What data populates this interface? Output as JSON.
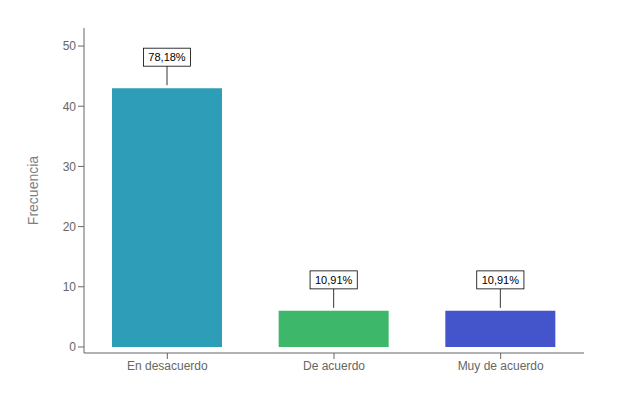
{
  "chart_data": {
    "type": "bar",
    "categories": [
      "En desacuerdo",
      "De acuerdo",
      "Muy de acuerdo"
    ],
    "values": [
      43,
      6,
      6
    ],
    "annotations": [
      "78,18%",
      "10,91%",
      "10,91%"
    ],
    "colors": [
      "#2E9DB8",
      "#3DB86A",
      "#4455CC"
    ],
    "ylabel": "Frecuencia",
    "ylim": [
      -1,
      53
    ],
    "yticks": [
      0,
      10,
      20,
      30,
      40,
      50
    ],
    "grid": false
  }
}
